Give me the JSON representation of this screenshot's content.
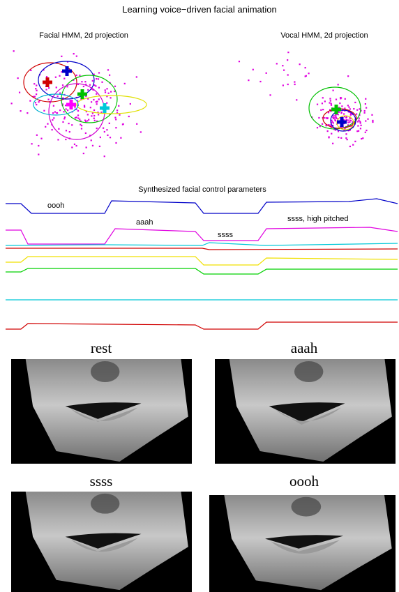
{
  "title": "Learning voice−driven facial animation",
  "panels": {
    "facial_hmm": {
      "title": "Facial HMM, 2d projection"
    },
    "vocal_hmm": {
      "title": "Vocal HMM, 2d projection"
    }
  },
  "parameters": {
    "title": "Synthesized facial control parameters",
    "annotations": [
      "oooh",
      "aaah",
      "ssss",
      "ssss, high pitched"
    ]
  },
  "faces": [
    {
      "label": "rest"
    },
    {
      "label": "aaah"
    },
    {
      "label": "ssss"
    },
    {
      "label": "oooh"
    }
  ]
}
